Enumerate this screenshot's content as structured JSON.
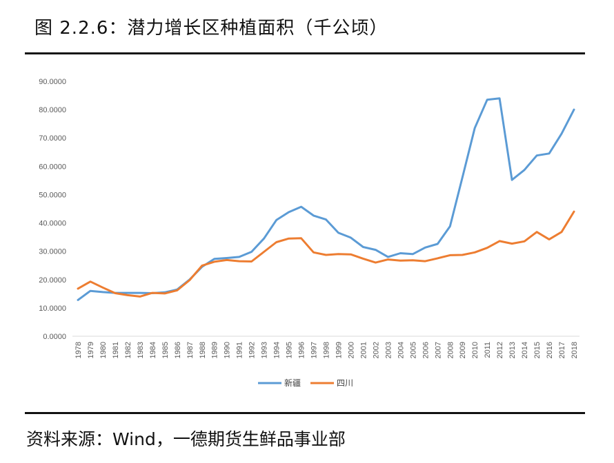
{
  "header": {
    "title": "图 2.2.6：潜力增长区种植面积（千公顷）"
  },
  "footer": {
    "source": "资料来源：Wind，一德期货生鲜品事业部"
  },
  "chart_data": {
    "type": "line",
    "title": "",
    "xlabel": "",
    "ylabel": "",
    "ylim": [
      0,
      90
    ],
    "yticks": [
      "0.0000",
      "10.0000",
      "20.0000",
      "30.0000",
      "40.0000",
      "50.0000",
      "60.0000",
      "70.0000",
      "80.0000",
      "90.0000"
    ],
    "grid": false,
    "legend": "bottom",
    "categories": [
      "1978",
      "1979",
      "1980",
      "1981",
      "1982",
      "1983",
      "1984",
      "1985",
      "1986",
      "1987",
      "1988",
      "1989",
      "1990",
      "1991",
      "1992",
      "1993",
      "1994",
      "1995",
      "1996",
      "1997",
      "1998",
      "1999",
      "2000",
      "2001",
      "2002",
      "2003",
      "2004",
      "2005",
      "2006",
      "2007",
      "2008",
      "2009",
      "2010",
      "2011",
      "2012",
      "2013",
      "2014",
      "2015",
      "2016",
      "2017",
      "2018"
    ],
    "series": [
      {
        "name": "新疆",
        "color": "#5B9BD5",
        "values": [
          12.8,
          16.0,
          15.6,
          15.3,
          15.3,
          15.3,
          15.2,
          15.5,
          16.5,
          20.0,
          24.5,
          27.3,
          27.6,
          28.0,
          29.8,
          34.5,
          41.0,
          43.8,
          45.7,
          42.6,
          41.2,
          36.5,
          34.8,
          31.5,
          30.5,
          28.0,
          29.3,
          29.0,
          31.3,
          32.6,
          38.8,
          56.0,
          73.5,
          83.5,
          84.0,
          55.2,
          58.7,
          63.8,
          64.5,
          71.5,
          80.0
        ]
      },
      {
        "name": "四川",
        "color": "#ED7D31",
        "values": [
          16.8,
          19.3,
          17.2,
          15.2,
          14.5,
          14.0,
          15.3,
          15.1,
          16.2,
          19.8,
          24.9,
          26.3,
          26.9,
          26.5,
          26.4,
          29.8,
          33.2,
          34.5,
          34.6,
          29.6,
          28.7,
          29.0,
          28.9,
          27.4,
          26.0,
          27.1,
          26.7,
          26.8,
          26.5,
          27.5,
          28.6,
          28.7,
          29.6,
          31.2,
          33.6,
          32.7,
          33.5,
          36.8,
          34.2,
          36.8,
          44.0
        ]
      }
    ]
  }
}
